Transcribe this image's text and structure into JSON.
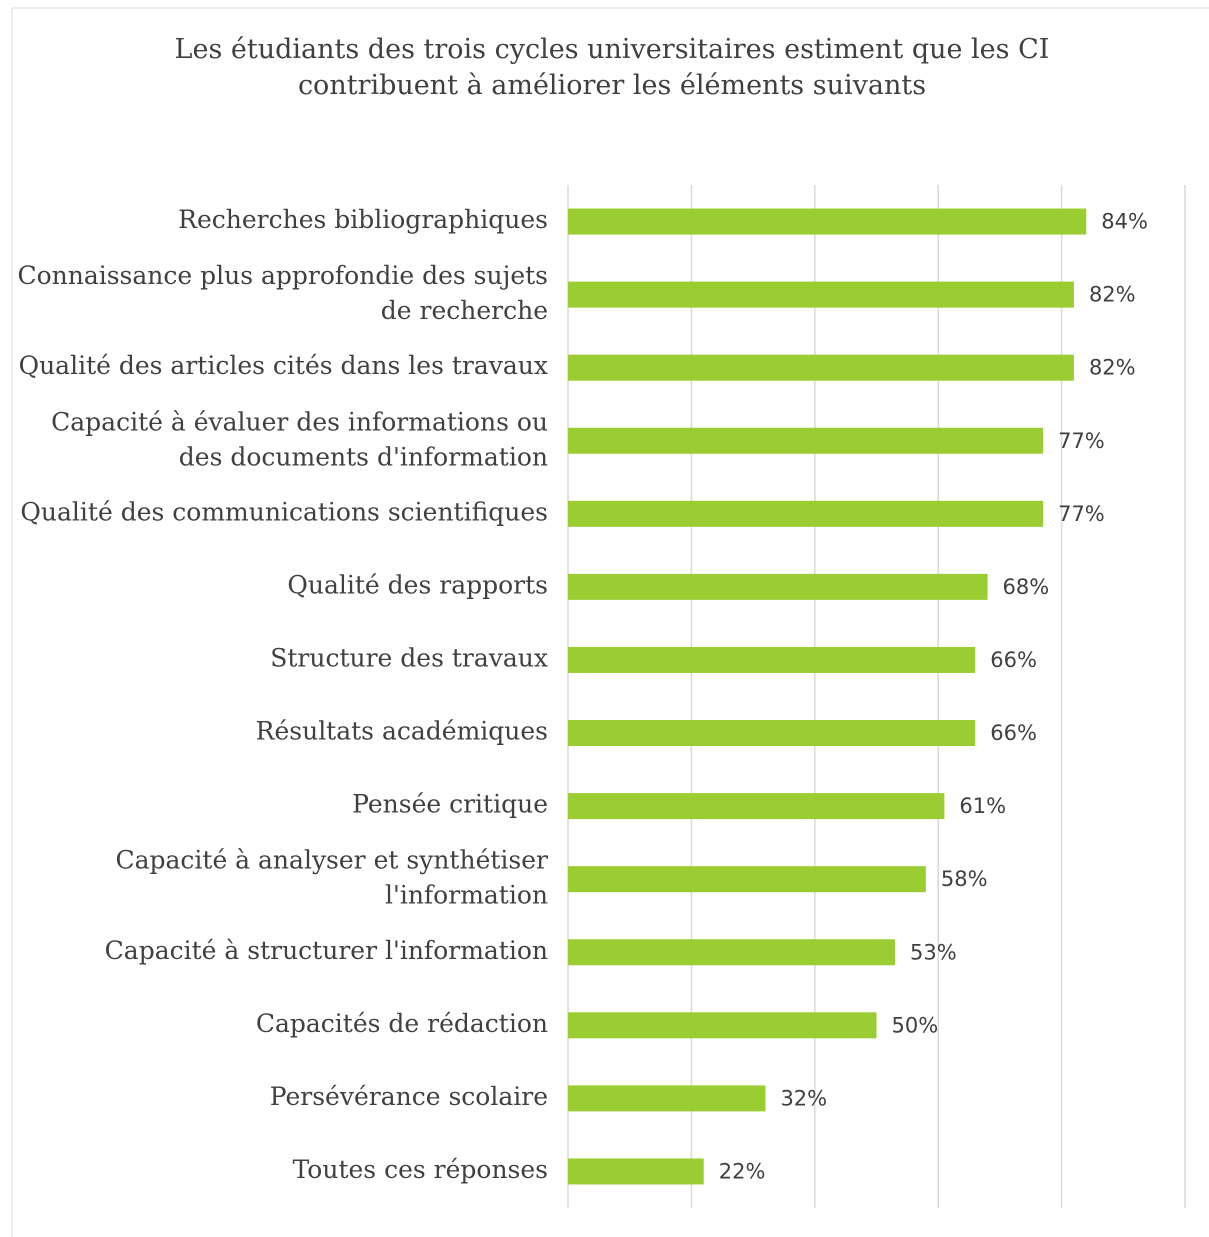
{
  "chart_data": {
    "type": "barh",
    "title": "Les étudiants des trois cycles universitaires estiment que les CI\ncontribuent à améliorer les éléments suivants",
    "categories": [
      "Recherches bibliographiques",
      "Connaissance plus approfondie des sujets\nde recherche",
      "Qualité des articles cités dans les travaux",
      "Capacité à évaluer des informations ou\ndes documents d'information",
      "Qualité des communications scientifiques",
      "Qualité des rapports",
      "Structure des travaux",
      "Résultats académiques",
      "Pensée critique",
      "Capacité à analyser et synthétiser\nl'information",
      "Capacité à structurer l'information",
      "Capacités de rédaction",
      "Persévérance scolaire",
      "Toutes ces réponses"
    ],
    "values": [
      84,
      82,
      82,
      77,
      77,
      68,
      66,
      66,
      61,
      58,
      53,
      50,
      32,
      22
    ],
    "value_labels": [
      "84%",
      "82%",
      "82%",
      "77%",
      "77%",
      "68%",
      "66%",
      "66%",
      "61%",
      "58%",
      "53%",
      "50%",
      "32%",
      "22%"
    ],
    "color": "#9acd32",
    "xlim": [
      0,
      100
    ],
    "xticks": [
      0,
      20,
      40,
      60,
      80,
      100
    ],
    "grid": true
  }
}
